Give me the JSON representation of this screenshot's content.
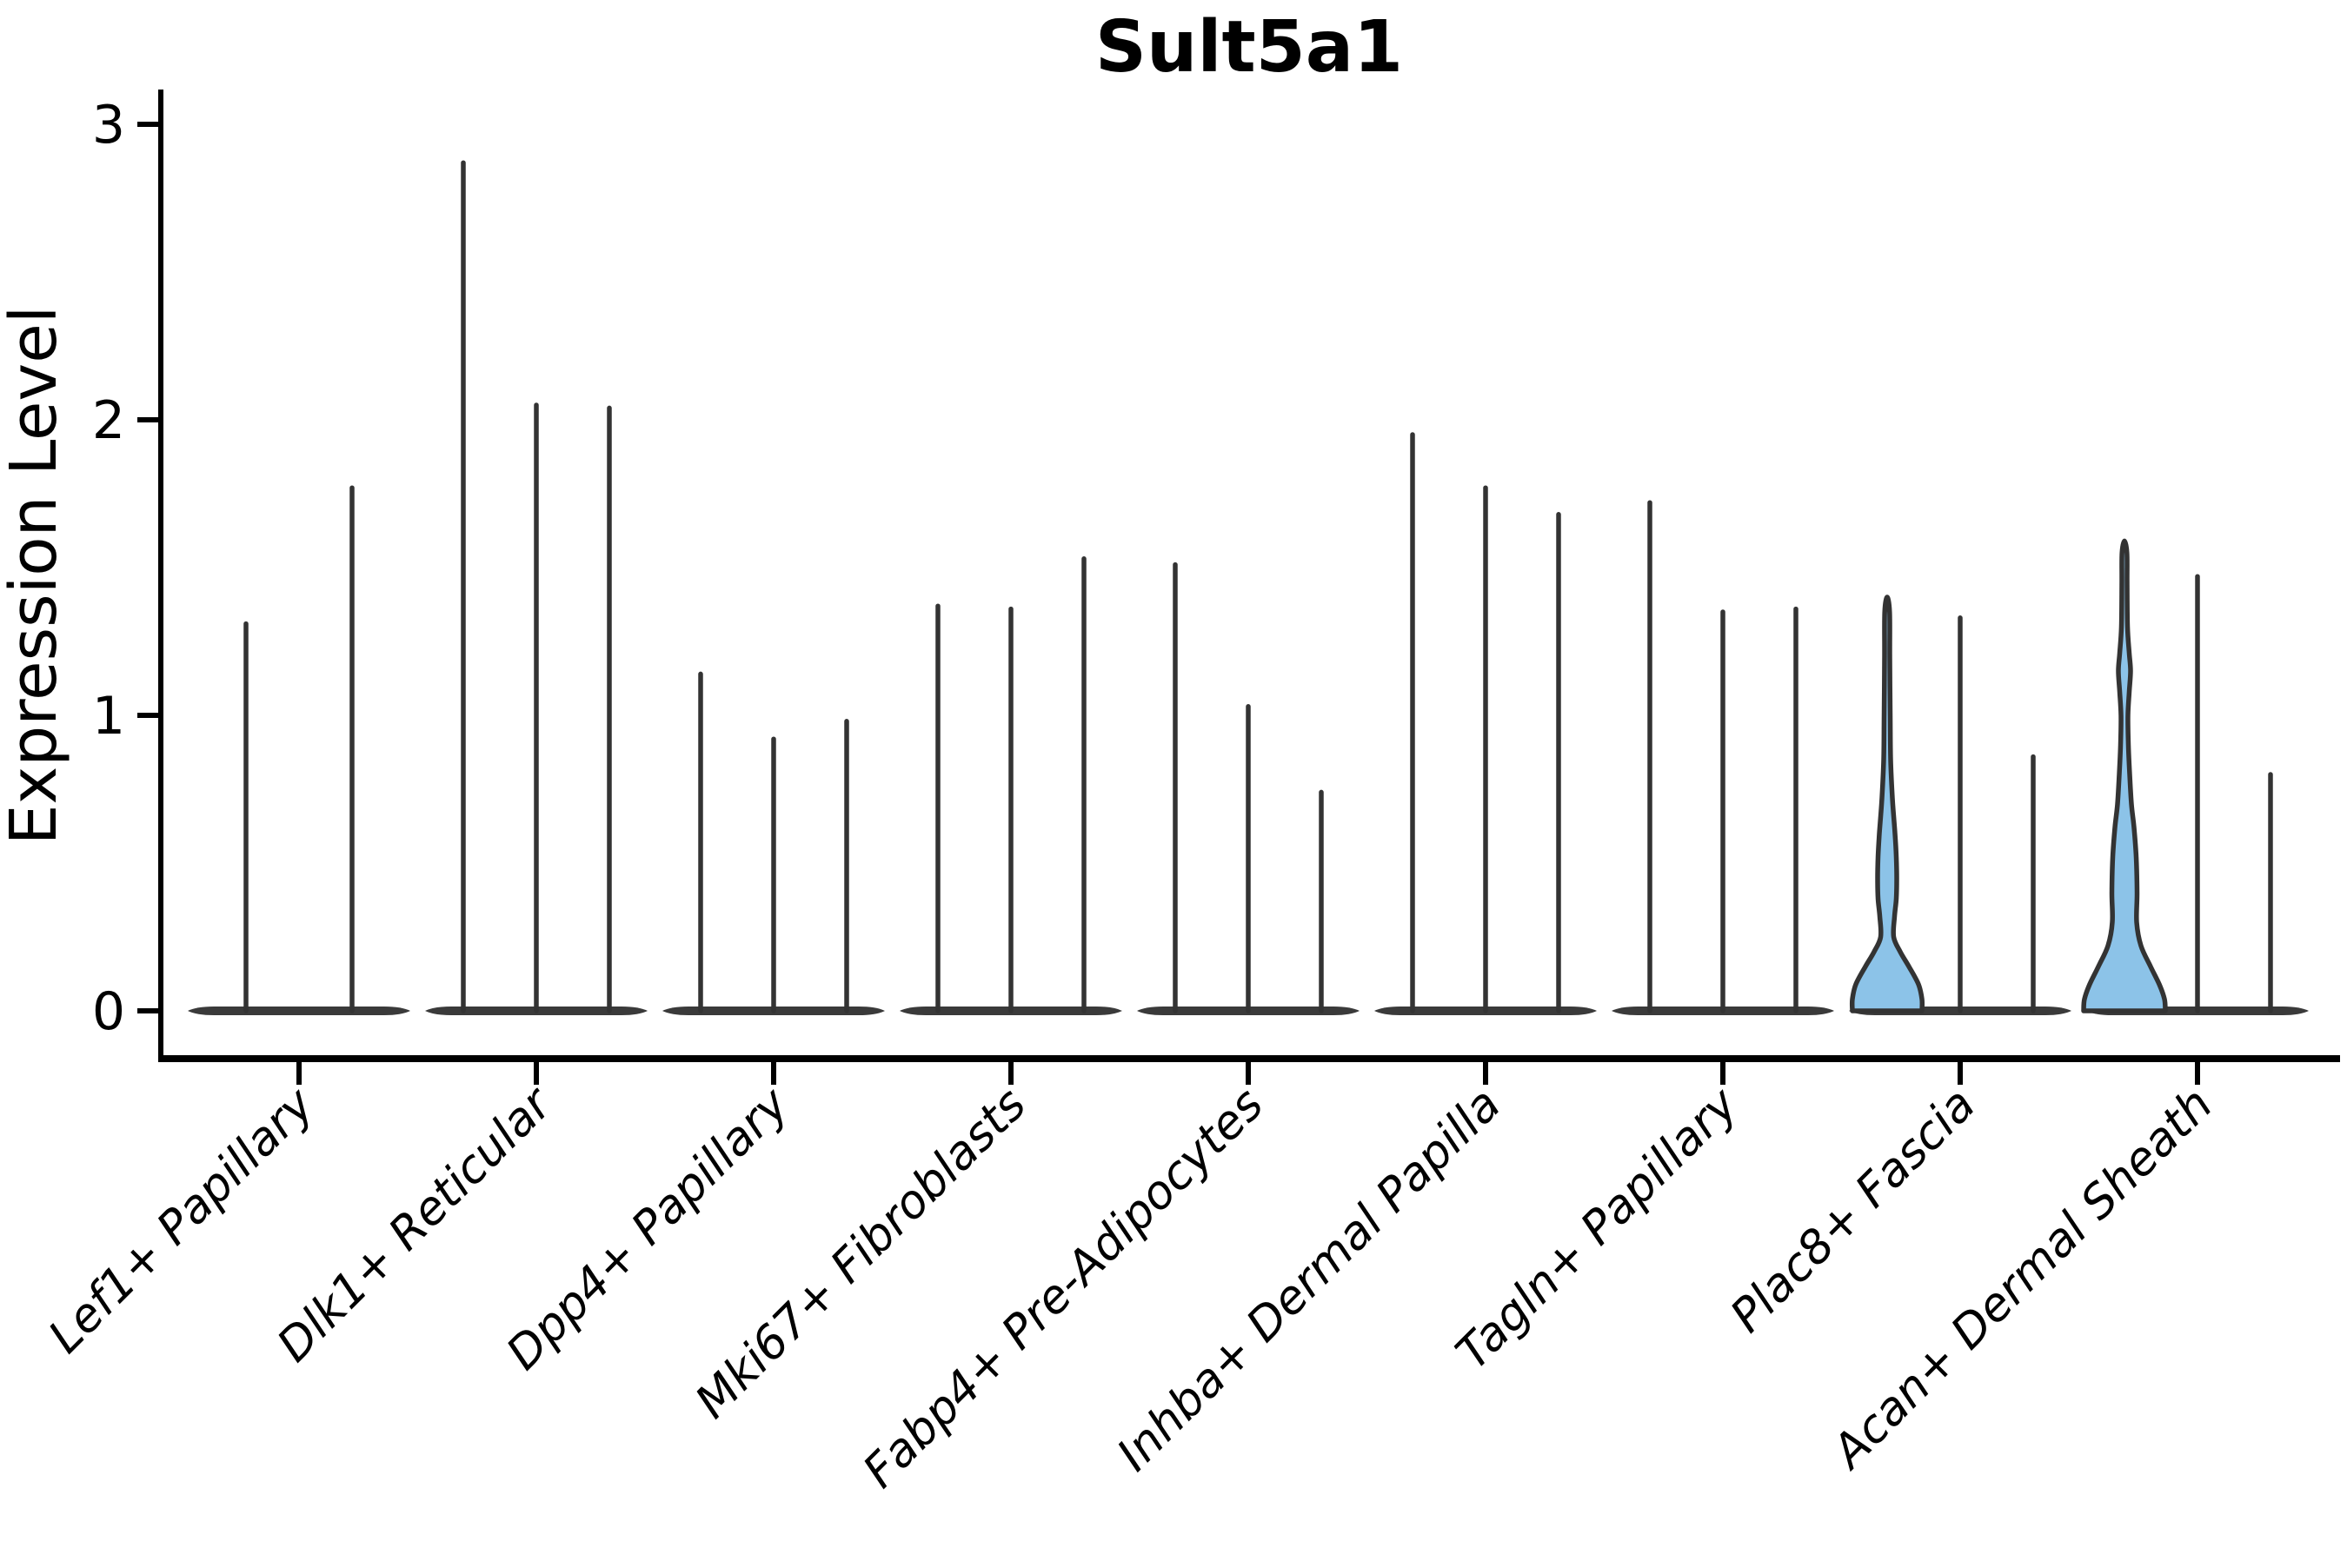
{
  "title": "Sult5a1",
  "chart_data": {
    "type": "violin",
    "title": "Sult5a1",
    "xlabel": "",
    "ylabel": "Expression Level",
    "yticks": [
      "0",
      "1",
      "2",
      "3"
    ],
    "ylim": [
      -0.16,
      3.08
    ],
    "grid": false,
    "legend": "none",
    "categories": [
      "Lef1+ Papillary",
      "Dlk1+ Reticular",
      "Dpp4+ Papillary",
      "Mki67+ Fibroblasts",
      "Fabp4+ Pre-Adipocytes",
      "Inhba+ Dermal Papilla",
      "Tagln+ Papillary",
      "Plac8+ Fascia",
      "Acan+ Dermal Sheath"
    ],
    "series": [
      {
        "category": "Lef1+ Papillary",
        "violin_max_values": [
          1.31,
          1.77
        ],
        "highlighted": []
      },
      {
        "category": "Dlk1+ Reticular",
        "violin_max_values": [
          2.87,
          2.05,
          2.04
        ],
        "highlighted": []
      },
      {
        "category": "Dpp4+ Papillary",
        "violin_max_values": [
          1.14,
          0.92,
          0.98
        ],
        "highlighted": []
      },
      {
        "category": "Mki67+ Fibroblasts",
        "violin_max_values": [
          1.37,
          1.36,
          1.53
        ],
        "highlighted": []
      },
      {
        "category": "Fabp4+ Pre-Adipocytes",
        "violin_max_values": [
          1.51,
          1.03,
          0.74
        ],
        "highlighted": []
      },
      {
        "category": "Inhba+ Dermal Papilla",
        "violin_max_values": [
          1.95,
          1.77,
          1.68
        ],
        "highlighted": []
      },
      {
        "category": "Tagln+ Papillary",
        "violin_max_values": [
          1.72,
          1.35,
          1.36
        ],
        "highlighted": []
      },
      {
        "category": "Plac8+ Fascia",
        "violin_max_values": [
          1.4,
          1.33,
          0.86
        ],
        "highlighted": [
          0
        ]
      },
      {
        "category": "Acan+ Dermal Sheath",
        "violin_max_values": [
          1.59,
          1.47,
          0.8
        ],
        "highlighted": [
          0
        ]
      }
    ],
    "highlight_profiles": {
      "Plac8+ Fascia": [
        [
          0.0,
          40
        ],
        [
          0.04,
          40
        ],
        [
          0.09,
          36
        ],
        [
          0.15,
          25
        ],
        [
          0.2,
          15
        ],
        [
          0.25,
          7.5
        ],
        [
          0.32,
          8.5
        ],
        [
          0.38,
          10.5
        ],
        [
          0.45,
          11
        ],
        [
          0.52,
          10.5
        ],
        [
          0.6,
          9
        ],
        [
          0.72,
          6
        ],
        [
          0.85,
          4
        ],
        [
          1.0,
          3.5
        ],
        [
          1.2,
          3
        ],
        [
          1.35,
          2.8
        ],
        [
          1.4,
          0
        ]
      ],
      "Acan+ Dermal Sheath": [
        [
          0.0,
          47
        ],
        [
          0.04,
          46
        ],
        [
          0.09,
          40
        ],
        [
          0.15,
          30
        ],
        [
          0.22,
          19
        ],
        [
          0.3,
          14
        ],
        [
          0.4,
          14.5
        ],
        [
          0.52,
          13.5
        ],
        [
          0.62,
          11
        ],
        [
          0.7,
          8
        ],
        [
          0.8,
          6
        ],
        [
          0.9,
          4.5
        ],
        [
          1.0,
          4
        ],
        [
          1.08,
          5.5
        ],
        [
          1.15,
          7
        ],
        [
          1.21,
          5.5
        ],
        [
          1.3,
          3.5
        ],
        [
          1.45,
          3
        ],
        [
          1.55,
          2.8
        ],
        [
          1.59,
          0
        ]
      ]
    },
    "colors": {
      "violin_stroke": "#333333",
      "highlight_fill": "#8CC3E8",
      "axis": "#000000",
      "background": "#ffffff"
    }
  }
}
